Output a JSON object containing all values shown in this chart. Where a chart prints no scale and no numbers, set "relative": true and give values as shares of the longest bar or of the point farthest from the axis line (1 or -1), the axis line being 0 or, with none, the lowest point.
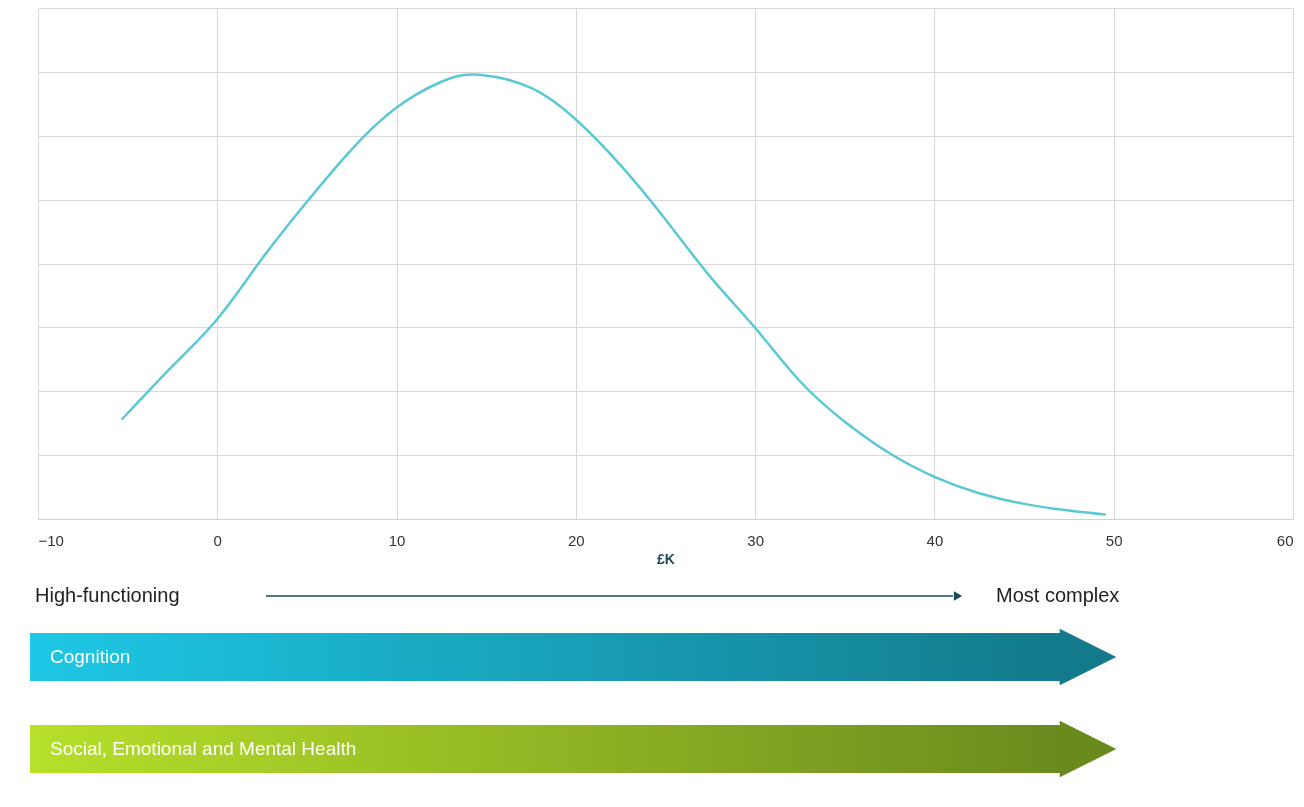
{
  "chart_data": {
    "type": "line",
    "relative": true,
    "x": [
      -5.3,
      -2.5,
      0,
      2.5,
      5,
      7.5,
      10,
      12.5,
      14.6,
      17.5,
      20,
      22.5,
      25,
      27.5,
      30,
      32.5,
      35,
      37.5,
      40,
      42.5,
      45,
      47.5,
      49.5
    ],
    "series": [
      {
        "color": "#5bc8d6",
        "values": [
          0.225,
          0.344,
          0.45,
          0.586,
          0.714,
          0.832,
          0.926,
          0.984,
          1.0,
          0.97,
          0.899,
          0.796,
          0.674,
          0.545,
          0.43,
          0.31,
          0.219,
          0.148,
          0.095,
          0.058,
          0.034,
          0.019,
          0.01
        ]
      }
    ],
    "xlim": [
      -10,
      60
    ],
    "xticks": [
      -10,
      0,
      10,
      20,
      30,
      40,
      50,
      60
    ],
    "xlabel": "£K",
    "grid": true,
    "line_style": "solid",
    "tick_labels": "x",
    "annotations": [
      "High-functioning",
      "Most complex",
      "Cognition",
      "Social, Emotional and Mental Health"
    ]
  }
}
